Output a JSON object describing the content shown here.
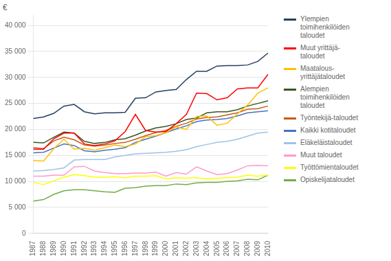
{
  "chart_data": {
    "type": "line",
    "ylabel": "€",
    "categories": [
      "1987",
      "1988",
      "1989",
      "1990",
      "1991",
      "1992",
      "1993",
      "1994",
      "1995",
      "1996",
      "1997",
      "1998",
      "1999",
      "2000",
      "2001",
      "2002",
      "2003",
      "2004",
      "2005",
      "2006",
      "2007",
      "2008",
      "2009",
      "2010"
    ],
    "series": [
      {
        "name": "Ylempien\ntoimihenkilöiden\ntaloudet",
        "color": "#243F60",
        "values": [
          22100,
          22400,
          23100,
          24500,
          24800,
          23400,
          23000,
          23200,
          23200,
          23300,
          26000,
          26100,
          27200,
          27500,
          27700,
          29600,
          31200,
          31200,
          32200,
          32300,
          32300,
          32400,
          33100,
          34700
        ]
      },
      {
        "name": "Muut yrittäjä-\ntaloudet",
        "color": "#FF0000",
        "values": [
          16200,
          16200,
          18200,
          19300,
          19300,
          17200,
          16900,
          17200,
          17800,
          19600,
          22900,
          19800,
          19500,
          19600,
          21100,
          22900,
          27000,
          26900,
          25700,
          26100,
          27800,
          28000,
          28000,
          30600
        ]
      },
      {
        "name": "Maatalous-\nyrittäjätaloudet",
        "color": "#FFC000",
        "values": [
          14000,
          13900,
          16300,
          18100,
          16200,
          16400,
          16000,
          16500,
          17000,
          16700,
          17200,
          18600,
          18800,
          19400,
          20500,
          20000,
          22500,
          22600,
          20800,
          21200,
          23000,
          24700,
          27000,
          28000
        ]
      },
      {
        "name": "Alempien\ntoimihenkilöiden\ntaloudet",
        "color": "#375623",
        "values": [
          17500,
          17400,
          18500,
          19500,
          19300,
          17700,
          17300,
          17500,
          18000,
          18200,
          18900,
          19700,
          20300,
          20600,
          21100,
          21900,
          22200,
          23200,
          23400,
          23400,
          23800,
          24500,
          25000,
          25500
        ]
      },
      {
        "name": "Työntekijä-taloudet",
        "color": "#C55A11",
        "values": [
          16500,
          16300,
          17800,
          18500,
          18000,
          17000,
          16800,
          17000,
          17300,
          17500,
          18100,
          18800,
          19400,
          19800,
          20600,
          21200,
          22000,
          22300,
          22400,
          22800,
          23200,
          23900,
          24000,
          24500
        ]
      },
      {
        "name": "Kaikki kotitaloudet",
        "color": "#4472C4",
        "values": [
          15500,
          15600,
          16400,
          17200,
          16900,
          15900,
          15700,
          16000,
          16200,
          16500,
          17500,
          18100,
          18700,
          19400,
          20100,
          20700,
          21500,
          21800,
          21900,
          22100,
          22600,
          23200,
          23400,
          23600
        ]
      },
      {
        "name": "Eläkeläistaloudet",
        "color": "#9DC3E6",
        "values": [
          12000,
          12100,
          12300,
          12600,
          14100,
          14200,
          14200,
          14200,
          14700,
          15000,
          15300,
          15400,
          15500,
          15600,
          15800,
          16100,
          16700,
          17100,
          17500,
          17700,
          18100,
          18700,
          19300,
          19500
        ]
      },
      {
        "name": "Muut taloudet",
        "color": "#FF99CC",
        "values": [
          11000,
          11000,
          11200,
          11200,
          12800,
          12900,
          12000,
          11700,
          11500,
          11500,
          11600,
          11600,
          11800,
          11000,
          11700,
          11400,
          12800,
          12000,
          11300,
          11500,
          12200,
          13000,
          13100,
          13000
        ]
      },
      {
        "name": "Työttömientaloudet",
        "color": "#FFFF00",
        "values": [
          9800,
          9400,
          10100,
          10800,
          11300,
          11100,
          10800,
          10800,
          10900,
          10700,
          11000,
          11000,
          11100,
          10500,
          10700,
          10600,
          10700,
          10500,
          10600,
          10700,
          10800,
          11200,
          11000,
          11200
        ]
      },
      {
        "name": "Opiskelijataloudet",
        "color": "#70AD47",
        "values": [
          6200,
          6500,
          7500,
          8200,
          8400,
          8400,
          8200,
          8000,
          7900,
          8700,
          8800,
          9100,
          9200,
          9200,
          9500,
          9400,
          9700,
          9800,
          9800,
          10000,
          10100,
          10400,
          10300,
          11200
        ]
      }
    ],
    "ylim": [
      0,
      42000
    ],
    "yticks": [
      0,
      {
        "value": 5000,
        "label": "5 000"
      },
      {
        "value": 10000,
        "label": "10 000"
      },
      {
        "value": 15000,
        "label": "15 000"
      },
      {
        "value": 20000,
        "label": "20 000"
      },
      {
        "value": 25000,
        "label": "25 000"
      },
      {
        "value": 30000,
        "label": "30 000"
      },
      {
        "value": 35000,
        "label": "35 000"
      },
      {
        "value": 40000,
        "label": "40 000"
      }
    ],
    "grid": true,
    "legend": "right"
  }
}
